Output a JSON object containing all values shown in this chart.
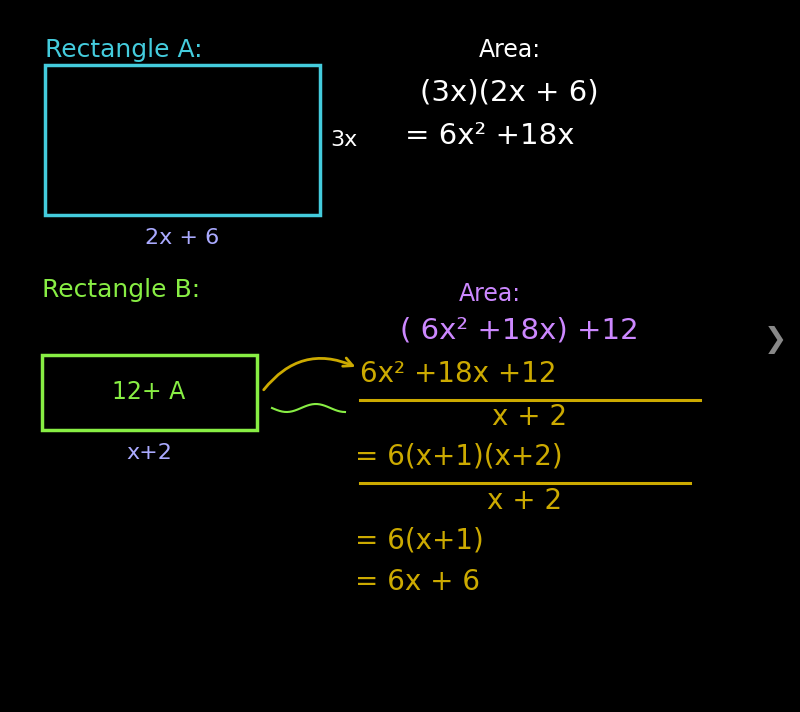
{
  "bg_color": "#000000",
  "rect_A_color": "#44ccdd",
  "rect_B_color": "#88ee44",
  "rect_A_label_color": "#44ccdd",
  "rect_B_label_color": "#88ee44",
  "width_A_color": "#aaaaff",
  "width_B_color": "#88ee44",
  "area_label_color": "#cc88ff",
  "area_eq_color": "#ffffff",
  "frac_color": "#ccaa00",
  "arrow_color": "#ccaa00",
  "title_A": "Rectangle A:",
  "title_B": "Rectangle B:",
  "width_A": "2x + 6",
  "height_A": "3x",
  "area_A_title": "Area:",
  "area_A_eq1": "(3x)(2x + 6)",
  "area_A_eq2": "= 6x² +18x",
  "area_B_title": "Area:",
  "area_B_eq": "( 6x² +18x) +12",
  "frac_num": "6x² +18x +12",
  "frac_den": "x + 2",
  "step2_num": "6(x+1)(x+2)",
  "step2_den": "x + 2",
  "step3": "= 6(x+1)",
  "step4": "= 6x + 6",
  "rect_B_interior": "12+ A",
  "width_B": "x+2",
  "chevron": "❯"
}
